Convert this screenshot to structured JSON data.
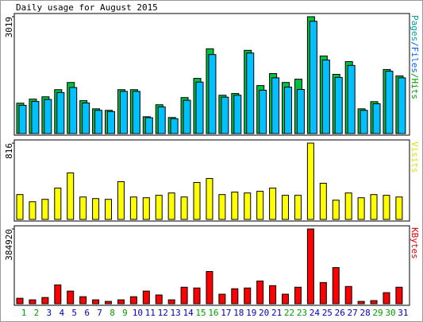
{
  "title": "Daily usage for August 2015",
  "chart_data": [
    {
      "type": "bar",
      "ylim": [
        0,
        3019
      ],
      "yticks": [
        3019
      ],
      "legend_separator": "/",
      "legend": [
        {
          "text": "Pages",
          "color": "#00a0a0"
        },
        {
          "text": "Files",
          "color": "#0060ff"
        },
        {
          "text": "Hits",
          "color": "#00a000"
        }
      ],
      "series": [
        {
          "name": "Hits",
          "color": "#00c040",
          "values": [
            785,
            890,
            950,
            1135,
            1320,
            850,
            640,
            600,
            1135,
            1135,
            435,
            745,
            415,
            930,
            1425,
            2190,
            990,
            1035,
            2150,
            1240,
            1550,
            1320,
            1405,
            3019,
            2005,
            1530,
            1860,
            640,
            825,
            1655,
            1490
          ]
        },
        {
          "name": "Files",
          "color": "#00c0ff",
          "values": [
            730,
            830,
            880,
            1060,
            1190,
            790,
            600,
            570,
            1090,
            1090,
            410,
            690,
            385,
            860,
            1330,
            2040,
            940,
            990,
            2080,
            1120,
            1440,
            1200,
            1140,
            2900,
            1900,
            1450,
            1760,
            600,
            770,
            1610,
            1440
          ]
        }
      ]
    },
    {
      "type": "bar",
      "ylim": [
        0,
        816
      ],
      "yticks": [
        816
      ],
      "legend": [
        {
          "text": "Visits",
          "color": "#e0e000"
        }
      ],
      "series": [
        {
          "name": "Visits",
          "color": "#ffff00",
          "values": [
            266,
            189,
            215,
            335,
            498,
            240,
            223,
            215,
            404,
            240,
            232,
            258,
            283,
            240,
            395,
            438,
            266,
            292,
            283,
            301,
            335,
            258,
            258,
            816,
            387,
            206,
            283,
            232,
            266,
            258,
            240
          ]
        }
      ]
    },
    {
      "type": "bar",
      "ylim": [
        0,
        384920
      ],
      "yticks": [
        384920
      ],
      "legend": [
        {
          "text": "KBytes",
          "color": "#e00000"
        }
      ],
      "series": [
        {
          "name": "KBytes",
          "color": "#ff0000",
          "values": [
            28000,
            20000,
            32000,
            97000,
            65000,
            36000,
            20000,
            12000,
            20000,
            36000,
            65000,
            45000,
            20000,
            85000,
            81000,
            166000,
            49000,
            77000,
            81000,
            117000,
            93000,
            49000,
            85000,
            384920,
            109000,
            186000,
            89000,
            12000,
            16000,
            57000,
            85000
          ]
        }
      ],
      "categories": [
        "1",
        "2",
        "3",
        "4",
        "5",
        "6",
        "7",
        "8",
        "9",
        "10",
        "11",
        "12",
        "13",
        "14",
        "15",
        "16",
        "17",
        "18",
        "19",
        "20",
        "21",
        "22",
        "23",
        "24",
        "25",
        "26",
        "27",
        "28",
        "29",
        "30",
        "31"
      ],
      "highlight": [
        0,
        1,
        7,
        8,
        14,
        15,
        21,
        22,
        28,
        29
      ],
      "highlight_color": "#00a000",
      "label_color": "#0000c0"
    }
  ]
}
